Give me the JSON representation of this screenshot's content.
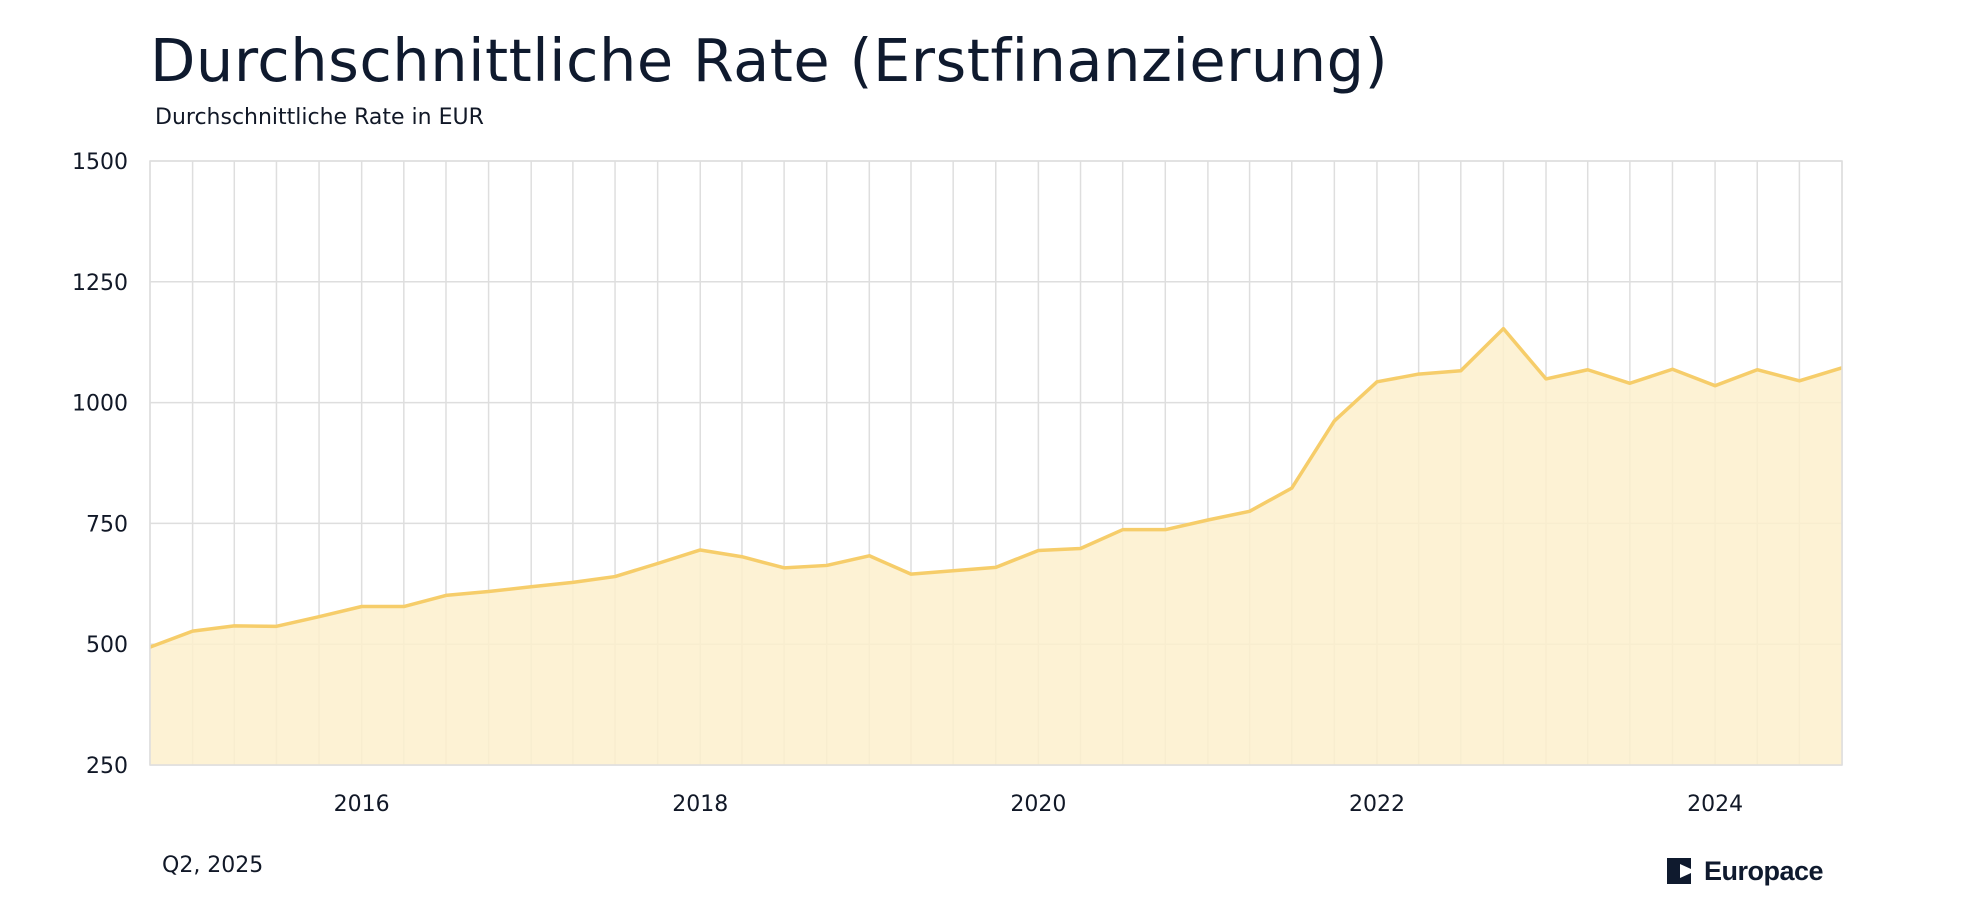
{
  "title": "Durchschnittliche Rate (Erstfinanzierung)",
  "subtitle": "Durchschnittliche Rate in EUR",
  "footer": {
    "period": "Q2, 2025",
    "brand": "Europace"
  },
  "colors": {
    "line": "#f6cd6a",
    "fill": "#fdf0cc",
    "grid": "#dedede",
    "text": "#0f1a2e"
  },
  "chart_data": {
    "type": "area",
    "title": "Durchschnittliche Rate (Erstfinanzierung)",
    "ylabel": "Durchschnittliche Rate in EUR",
    "xlabel": "",
    "xlim": [
      "2014-10-01",
      "2024-10-01"
    ],
    "ylim": [
      250,
      1500
    ],
    "yticks": [
      250,
      500,
      750,
      1000,
      1250,
      1500
    ],
    "xticks": [
      "2016",
      "2018",
      "2020",
      "2022",
      "2024"
    ],
    "grid": true,
    "legend": "none",
    "series": [
      {
        "x": [
          "2014-10-01",
          "2015-01-01",
          "2015-04-01",
          "2015-07-01",
          "2015-10-01",
          "2016-01-01",
          "2016-04-01",
          "2016-07-01",
          "2016-10-01",
          "2017-01-01",
          "2017-04-01",
          "2017-07-01",
          "2017-10-01",
          "2018-01-01",
          "2018-04-01",
          "2018-07-01",
          "2018-10-01",
          "2019-01-01",
          "2019-04-01",
          "2019-07-01",
          "2019-10-01",
          "2020-01-01",
          "2020-04-01",
          "2020-07-01",
          "2020-10-01",
          "2021-01-01",
          "2021-04-01",
          "2021-07-01",
          "2021-10-01",
          "2022-01-01",
          "2022-04-01",
          "2022-07-01",
          "2022-10-01",
          "2023-01-01",
          "2023-04-01",
          "2023-07-01",
          "2023-10-01",
          "2024-01-01",
          "2024-04-01",
          "2024-07-01",
          "2024-10-01"
        ],
        "values": [
          494,
          527,
          538,
          537,
          557,
          578,
          578,
          601,
          609,
          619,
          628,
          640,
          667,
          695,
          681,
          658,
          663,
          683,
          645,
          652,
          659,
          694,
          698,
          737,
          737,
          757,
          775,
          823,
          962,
          1043,
          1059,
          1066,
          1153,
          1049,
          1068,
          1040,
          1069,
          1035,
          1068,
          1045,
          1072
        ]
      }
    ]
  }
}
